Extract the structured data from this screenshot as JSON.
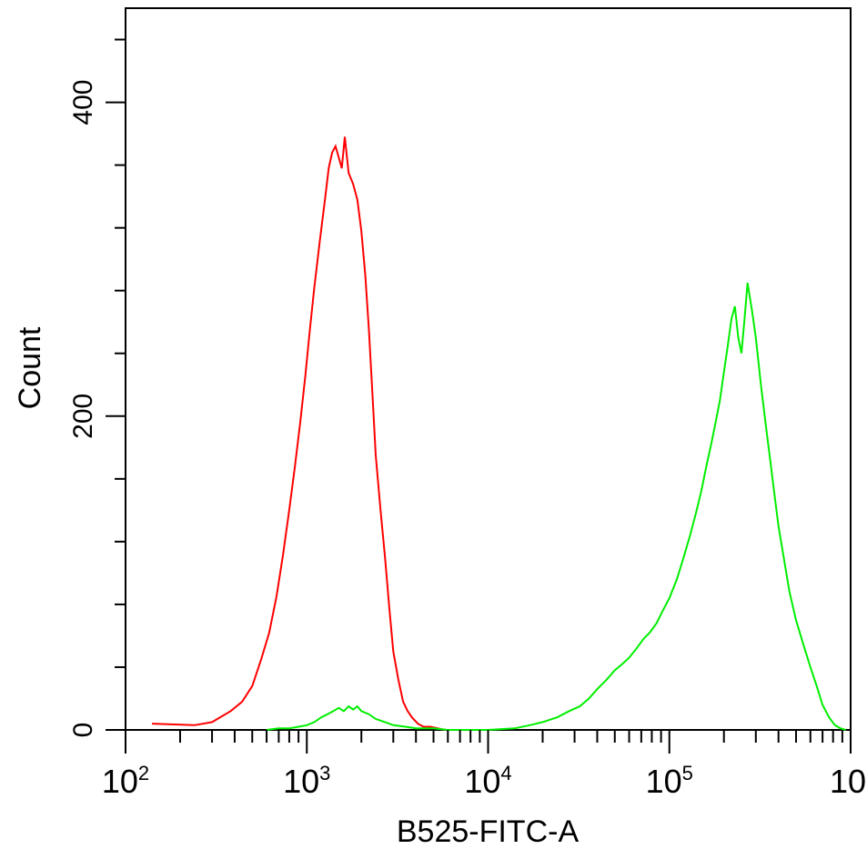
{
  "chart_data": {
    "type": "line",
    "title": "",
    "xlabel": "B525-FITC-A",
    "ylabel": "Count",
    "xscale": "log",
    "xlim": [
      100,
      1000000
    ],
    "ylim": [
      0,
      460
    ],
    "grid": false,
    "legend": "none",
    "x_major_ticks": [
      {
        "value": 100,
        "base": "10",
        "exp": "2"
      },
      {
        "value": 1000,
        "base": "10",
        "exp": "3"
      },
      {
        "value": 10000,
        "base": "10",
        "exp": "4"
      },
      {
        "value": 100000,
        "base": "10",
        "exp": "5"
      },
      {
        "value": 1000000,
        "base": "10",
        "exp": ""
      }
    ],
    "y_labeled_ticks": [
      {
        "value": 0,
        "label": "0"
      },
      {
        "value": 200,
        "label": "200"
      },
      {
        "value": 400,
        "label": "400"
      }
    ],
    "y_minor_ticks": [
      40,
      80,
      120,
      160,
      240,
      280,
      320,
      360,
      440
    ],
    "series": [
      {
        "color": "#ff0000",
        "x": [
          140,
          240,
          300,
          380,
          440,
          500,
          560,
          620,
          680,
          740,
          800,
          860,
          920,
          980,
          1040,
          1100,
          1180,
          1260,
          1320,
          1380,
          1440,
          1500,
          1560,
          1620,
          1700,
          1800,
          1900,
          2000,
          2100,
          2200,
          2300,
          2400,
          2550,
          2700,
          2850,
          3000,
          3200,
          3400,
          3600,
          3800,
          4100,
          4400,
          4800,
          5300,
          5800
        ],
        "values": [
          4,
          3,
          5,
          12,
          18,
          28,
          45,
          62,
          85,
          112,
          140,
          168,
          196,
          225,
          255,
          282,
          312,
          338,
          358,
          368,
          372,
          365,
          358,
          378,
          355,
          348,
          338,
          318,
          290,
          255,
          215,
          175,
          140,
          110,
          78,
          50,
          32,
          18,
          12,
          8,
          4,
          2,
          2,
          1,
          0
        ]
      },
      {
        "color": "#00ee00",
        "x": [
          600,
          700,
          800,
          900,
          1000,
          1100,
          1200,
          1300,
          1400,
          1500,
          1600,
          1700,
          1800,
          1900,
          2000,
          2200,
          2400,
          2700,
          3000,
          3500,
          4000,
          5000,
          6000,
          8000,
          10000,
          14000,
          17000,
          20000,
          24000,
          28000,
          32000,
          36000,
          40000,
          45000,
          50000,
          55000,
          60000,
          66000,
          72000,
          78000,
          85000,
          92000,
          100000,
          110000,
          120000,
          130000,
          140000,
          150000,
          160000,
          170000,
          180000,
          190000,
          200000,
          210000,
          220000,
          230000,
          240000,
          250000,
          260000,
          270000,
          285000,
          300000,
          320000,
          340000,
          360000,
          380000,
          400000,
          430000,
          460000,
          500000,
          550000,
          600000,
          650000,
          700000,
          760000,
          820000,
          880000,
          940000
        ],
        "values": [
          0,
          1,
          1,
          2,
          3,
          5,
          8,
          10,
          12,
          14,
          12,
          15,
          13,
          15,
          12,
          10,
          7,
          5,
          3,
          2,
          1,
          1,
          0,
          0,
          0,
          1,
          3,
          5,
          8,
          12,
          15,
          20,
          26,
          32,
          38,
          42,
          46,
          52,
          58,
          62,
          68,
          76,
          84,
          96,
          110,
          124,
          138,
          152,
          168,
          182,
          196,
          210,
          228,
          245,
          262,
          270,
          250,
          240,
          262,
          285,
          268,
          250,
          220,
          195,
          172,
          150,
          130,
          108,
          88,
          70,
          54,
          40,
          28,
          16,
          8,
          3,
          1,
          0
        ]
      }
    ]
  }
}
